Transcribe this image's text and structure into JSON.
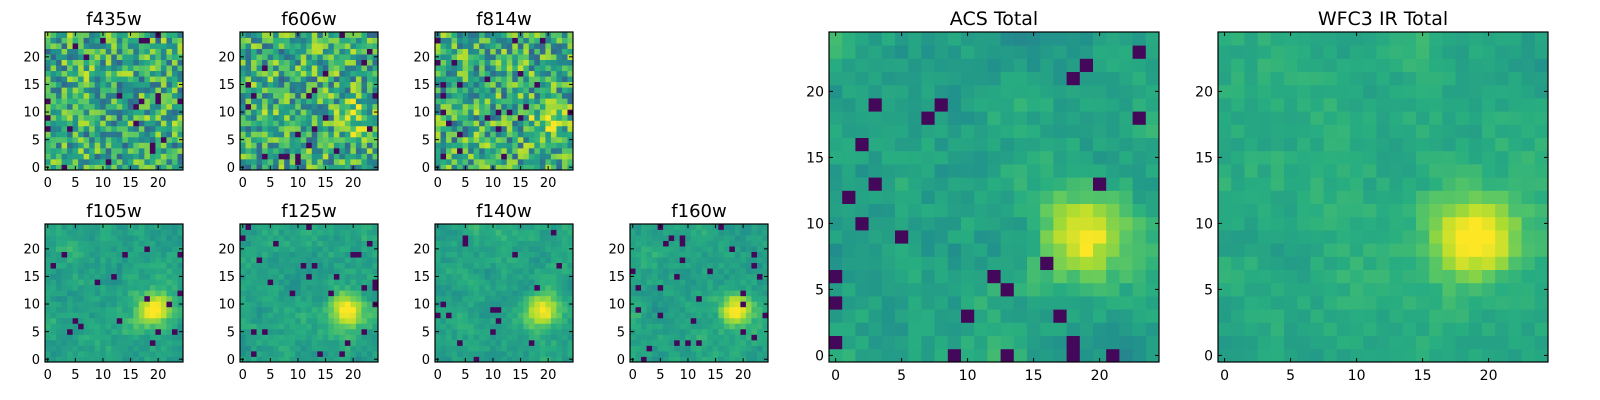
{
  "chart_data": [
    {
      "type": "heatmap",
      "title": "f435w",
      "grid": "25x25",
      "xlim": [
        -0.5,
        24.5
      ],
      "ylim": [
        -0.5,
        24.5
      ],
      "xticks": [
        0,
        5,
        10,
        15,
        20
      ],
      "yticks": [
        0,
        5,
        10,
        15,
        20
      ],
      "colormap": "viridis",
      "peak_location": null,
      "noise_level": "high"
    },
    {
      "type": "heatmap",
      "title": "f606w",
      "grid": "25x25",
      "xlim": [
        -0.5,
        24.5
      ],
      "ylim": [
        -0.5,
        24.5
      ],
      "xticks": [
        0,
        5,
        10,
        15,
        20
      ],
      "yticks": [
        0,
        5,
        10,
        15,
        20
      ],
      "colormap": "viridis",
      "peak_location": [
        20,
        9
      ],
      "noise_level": "high"
    },
    {
      "type": "heatmap",
      "title": "f814w",
      "grid": "25x25",
      "xlim": [
        -0.5,
        24.5
      ],
      "ylim": [
        -0.5,
        24.5
      ],
      "xticks": [
        0,
        5,
        10,
        15,
        20
      ],
      "yticks": [
        0,
        5,
        10,
        15,
        20
      ],
      "colormap": "viridis",
      "peak_location": [
        20,
        9
      ],
      "noise_level": "high"
    },
    {
      "type": "heatmap",
      "title": "f105w",
      "grid": "25x25",
      "xlim": [
        -0.5,
        24.5
      ],
      "ylim": [
        -0.5,
        24.5
      ],
      "xticks": [
        0,
        5,
        10,
        15,
        20
      ],
      "yticks": [
        0,
        5,
        10,
        15,
        20
      ],
      "colormap": "viridis",
      "peak_location": [
        19,
        9
      ],
      "noise_level": "medium"
    },
    {
      "type": "heatmap",
      "title": "f125w",
      "grid": "25x25",
      "xlim": [
        -0.5,
        24.5
      ],
      "ylim": [
        -0.5,
        24.5
      ],
      "xticks": [
        0,
        5,
        10,
        15,
        20
      ],
      "yticks": [
        0,
        5,
        10,
        15,
        20
      ],
      "colormap": "viridis",
      "peak_location": [
        19,
        9
      ],
      "noise_level": "medium"
    },
    {
      "type": "heatmap",
      "title": "f140w",
      "grid": "25x25",
      "xlim": [
        -0.5,
        24.5
      ],
      "ylim": [
        -0.5,
        24.5
      ],
      "xticks": [
        0,
        5,
        10,
        15,
        20
      ],
      "yticks": [
        0,
        5,
        10,
        15,
        20
      ],
      "colormap": "viridis",
      "peak_location": [
        19,
        9
      ],
      "noise_level": "medium"
    },
    {
      "type": "heatmap",
      "title": "f160w",
      "grid": "25x25",
      "xlim": [
        -0.5,
        24.5
      ],
      "ylim": [
        -0.5,
        24.5
      ],
      "xticks": [
        0,
        5,
        10,
        15,
        20
      ],
      "yticks": [
        0,
        5,
        10,
        15,
        20
      ],
      "colormap": "viridis",
      "peak_location": [
        19,
        9
      ],
      "noise_level": "medium"
    },
    {
      "type": "heatmap",
      "title": "ACS Total",
      "grid": "25x25",
      "xlim": [
        -0.5,
        24.5
      ],
      "ylim": [
        -0.5,
        24.5
      ],
      "xticks": [
        0,
        5,
        10,
        15,
        20
      ],
      "yticks": [
        0,
        5,
        10,
        15,
        20
      ],
      "colormap": "viridis",
      "peak_location": [
        19,
        9
      ],
      "noise_level": "medium"
    },
    {
      "type": "heatmap",
      "title": "WFC3 IR Total",
      "grid": "25x25",
      "xlim": [
        -0.5,
        24.5
      ],
      "ylim": [
        -0.5,
        24.5
      ],
      "xticks": [
        0,
        5,
        10,
        15,
        20
      ],
      "yticks": [
        0,
        5,
        10,
        15,
        20
      ],
      "colormap": "viridis",
      "peak_location": [
        19,
        9
      ],
      "noise_level": "low"
    }
  ],
  "colors": {
    "viridis_stops": [
      "#440154",
      "#472d7b",
      "#3b528b",
      "#2c728e",
      "#21918c",
      "#28ae80",
      "#5ec962",
      "#addc30",
      "#fde725"
    ],
    "frame": "#000000",
    "background": "#ffffff"
  }
}
